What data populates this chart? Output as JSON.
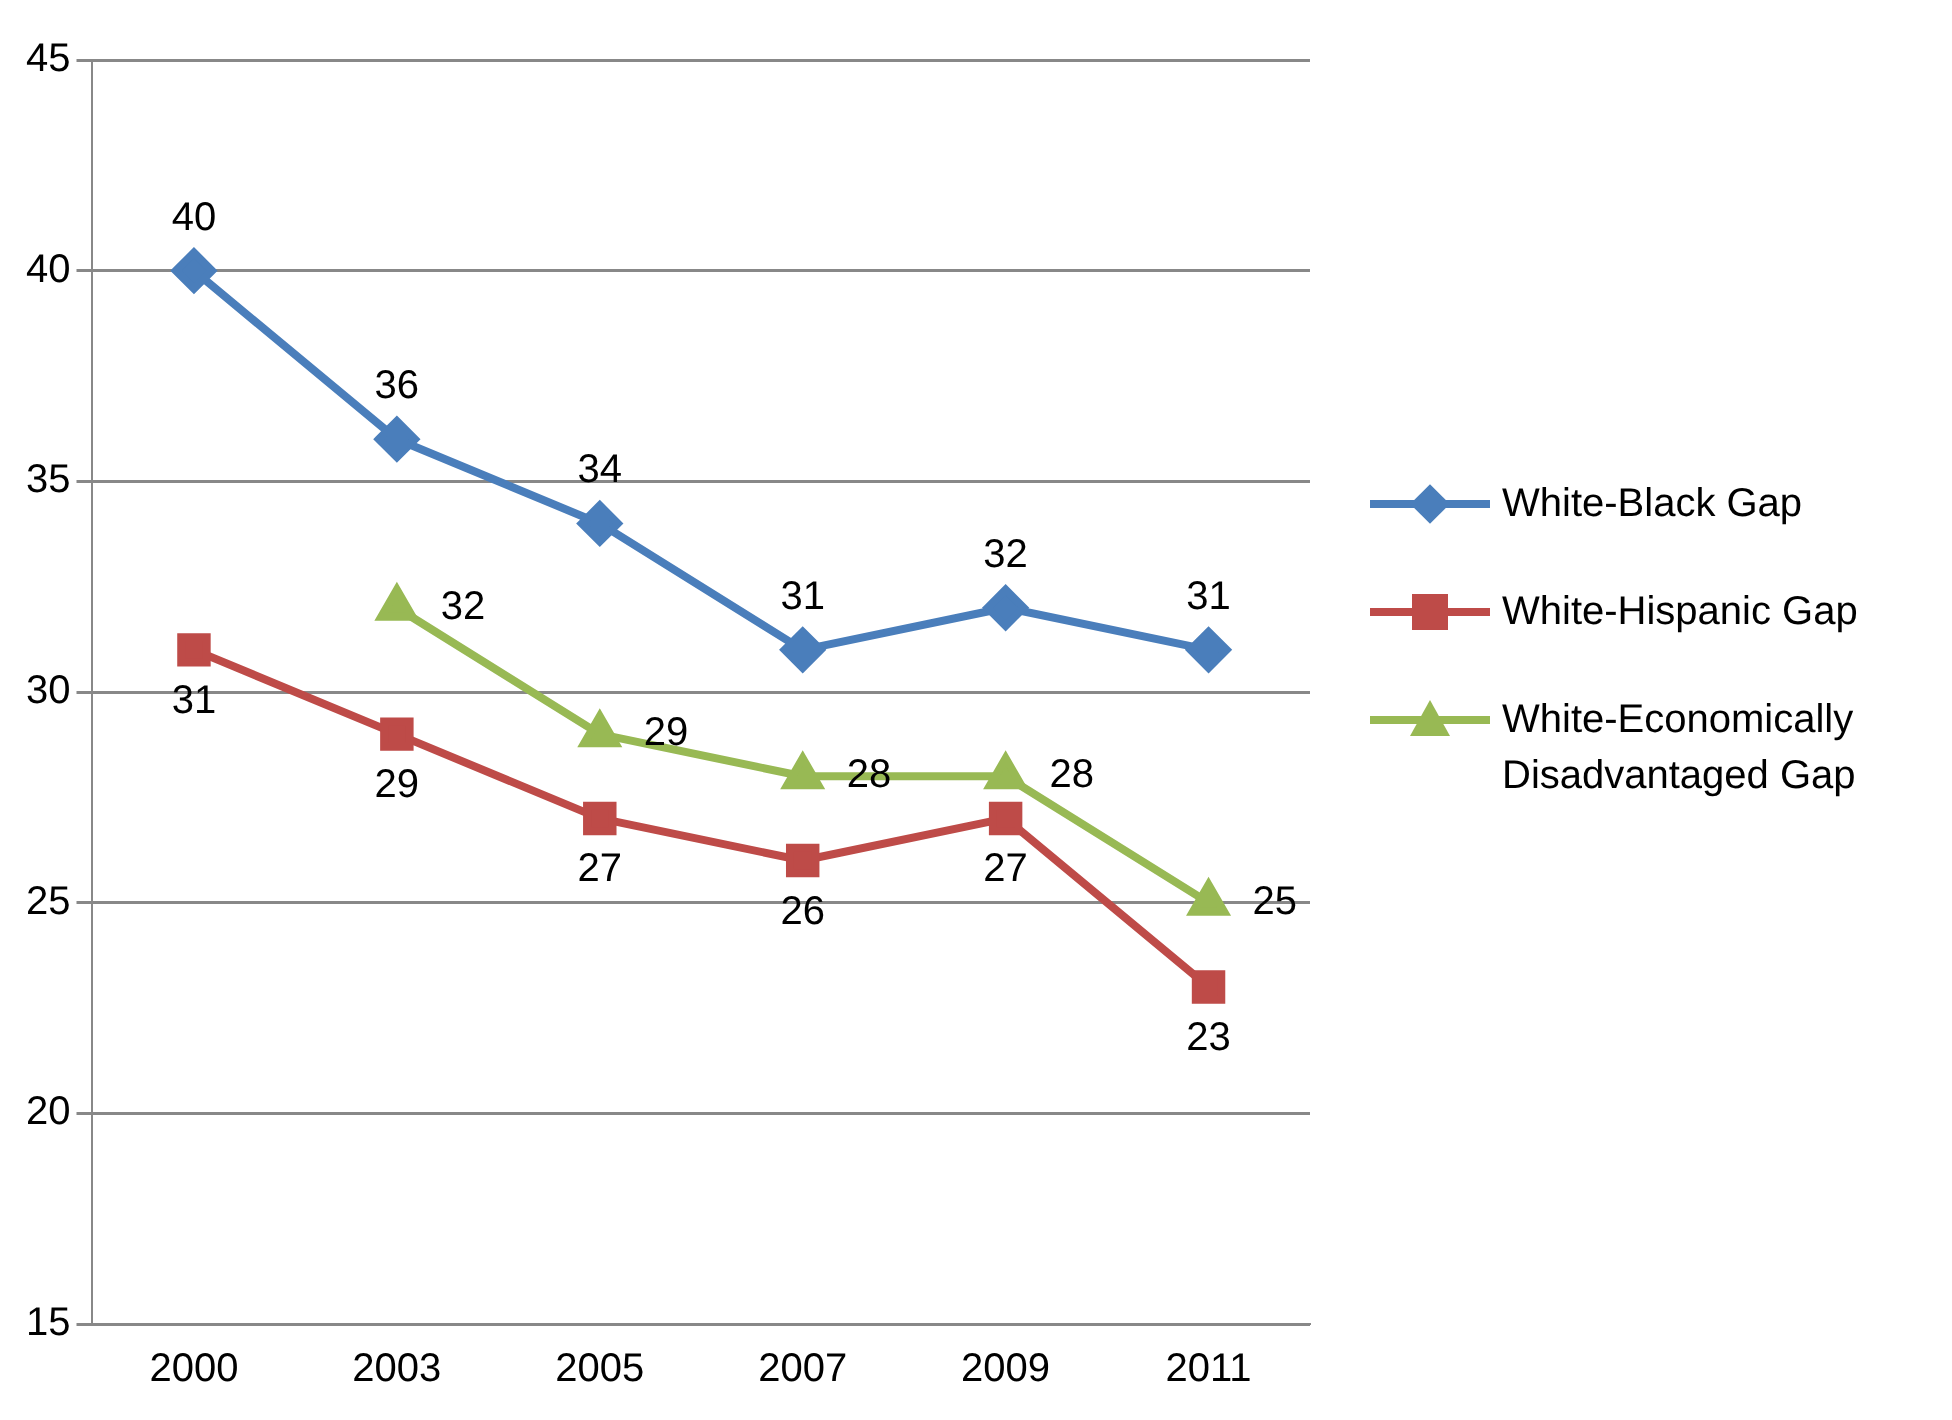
{
  "chart_data": {
    "type": "line",
    "categories": [
      "2000",
      "2003",
      "2005",
      "2007",
      "2009",
      "2011"
    ],
    "series": [
      {
        "name": "White-Black Gap",
        "color": "#4a7ebb",
        "marker": "diamond",
        "values": [
          40,
          36,
          34,
          31,
          32,
          31
        ]
      },
      {
        "name": "White-Hispanic Gap",
        "color": "#be4b48",
        "marker": "square",
        "values": [
          31,
          29,
          27,
          26,
          27,
          23
        ]
      },
      {
        "name": "White-Economically Disadvantaged Gap",
        "color": "#98b954",
        "marker": "triangle",
        "values": [
          null,
          32,
          29,
          28,
          28,
          25
        ]
      }
    ],
    "ylim": [
      15,
      45
    ],
    "yticks": [
      15,
      20,
      25,
      30,
      35,
      40,
      45
    ],
    "grid": "y",
    "legend": "right",
    "data_labels": true,
    "line_style": "solid"
  }
}
